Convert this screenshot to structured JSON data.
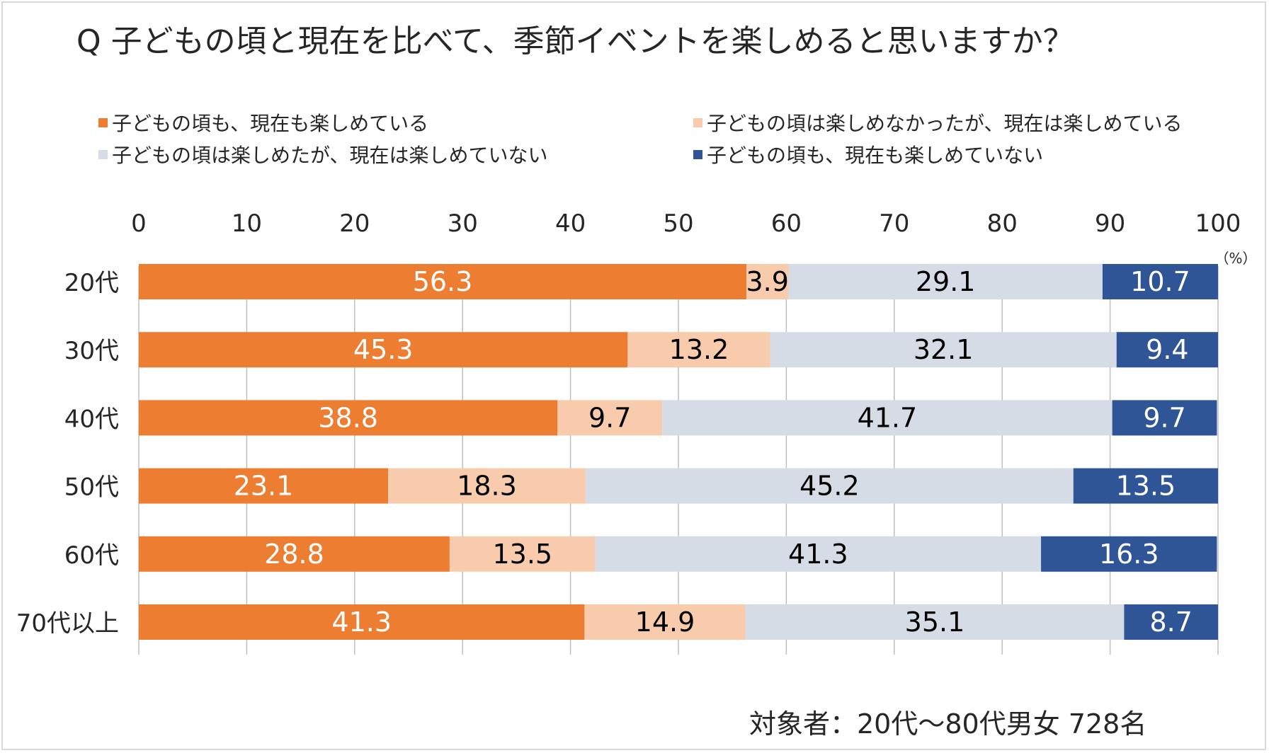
{
  "title": "Q 子どもの頃と現在を比べて、季節イベントを楽しめると思いますか？",
  "note": "対象者：20代～80代男女 728名",
  "colors": {
    "s1": "#ED7D31",
    "s2": "#F8CBAD",
    "s3": "#D6DCE5",
    "s4": "#2F5597",
    "axis": "#bfbfbf",
    "text": "#262626"
  },
  "chart_data": {
    "type": "bar",
    "orientation": "horizontal",
    "stacked": true,
    "title": "Q 子どもの頃と現在を比べて、季節イベントを楽しめると思いますか？",
    "unit_label": "（%）",
    "xlim": [
      0,
      100
    ],
    "ticks": [
      "0",
      "10",
      "20",
      "30",
      "40",
      "50",
      "60",
      "70",
      "80",
      "90",
      "100"
    ],
    "categories": [
      "20代",
      "30代",
      "40代",
      "50代",
      "60代",
      "70代以上"
    ],
    "legend_position": "top",
    "series": [
      {
        "name": "子どもの頃も、現在も楽しめている",
        "color": "#ED7D31",
        "label_color": "#ffffff",
        "values": [
          56.3,
          45.3,
          38.8,
          23.1,
          28.8,
          41.3
        ]
      },
      {
        "name": "子どもの頃は楽しめなかったが、現在は楽しめている",
        "color": "#F8CBAD",
        "label_color": "#000000",
        "values": [
          3.9,
          13.2,
          9.7,
          18.3,
          13.5,
          14.9
        ]
      },
      {
        "name": "子どもの頃は楽しめたが、現在は楽しめていない",
        "color": "#D6DCE5",
        "label_color": "#000000",
        "values": [
          29.1,
          32.1,
          41.7,
          45.2,
          41.3,
          35.1
        ]
      },
      {
        "name": "子どもの頃も、現在も楽しめていない",
        "color": "#2F5597",
        "label_color": "#ffffff",
        "values": [
          10.7,
          9.4,
          9.7,
          13.5,
          16.3,
          8.7
        ]
      }
    ]
  }
}
